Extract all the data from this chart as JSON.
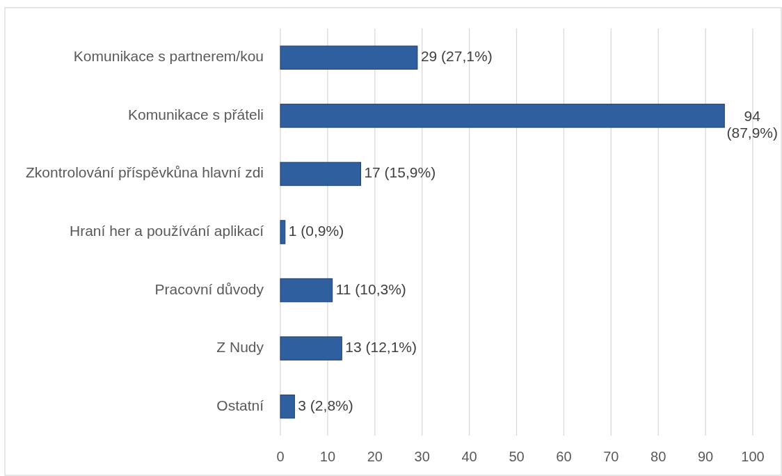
{
  "chart_data": {
    "type": "bar",
    "orientation": "horizontal",
    "categories": [
      "Komunikace s partnerem/kou",
      "Komunikace s přáteli",
      "Zkontrolování příspěvkůna hlavní zdi",
      "Hraní her a používání aplikací",
      "Pracovní důvody",
      "Z Nudy",
      "Ostatní"
    ],
    "values": [
      29,
      94,
      17,
      1,
      11,
      13,
      3
    ],
    "value_labels": [
      "29 (27,1%)",
      "94 (87,9%)",
      "17 (15,9%)",
      "1 (0,9%)",
      "11 (10,3%)",
      "13 (12,1%)",
      "3 (2,8%)"
    ],
    "color": "#2f5f9e",
    "xlim": [
      0,
      100
    ],
    "xticks": [
      0,
      10,
      20,
      30,
      40,
      50,
      60,
      70,
      80,
      90,
      100
    ],
    "grid": "x"
  }
}
